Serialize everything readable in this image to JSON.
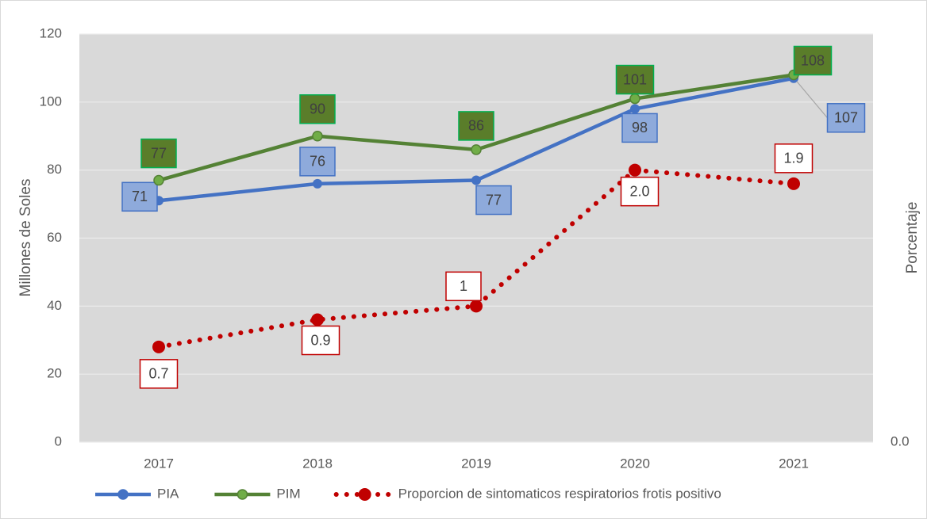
{
  "chart_data": {
    "type": "line",
    "y_label": "Millones de Soles",
    "y2_label": "Porcentaje",
    "categories": [
      "2017",
      "2018",
      "2019",
      "2020",
      "2021"
    ],
    "series": [
      {
        "name": "PIA",
        "color": "#4472c4",
        "values": [
          71,
          76,
          77,
          98,
          107
        ]
      },
      {
        "name": "PIM",
        "color": "#548235",
        "values": [
          77,
          90,
          86,
          101,
          108
        ]
      },
      {
        "name": "Proporcion de sintomaticos respiratorios frotis positivo",
        "color": "#c00000",
        "axis": "y2",
        "line_style": "dotted",
        "values": [
          0.7,
          0.9,
          1,
          2,
          1.9
        ],
        "value_labels": [
          "0.7",
          "0.9",
          "1",
          "2.0",
          "1.9"
        ]
      }
    ],
    "ylim": [
      0,
      120
    ],
    "yticks": [
      0,
      20,
      40,
      60,
      80,
      100,
      120
    ],
    "y2lim": [
      0,
      3
    ],
    "y2ticks": [
      {
        "value": 0,
        "label": "0.0"
      }
    ],
    "grid": true,
    "legend": "bottom"
  }
}
